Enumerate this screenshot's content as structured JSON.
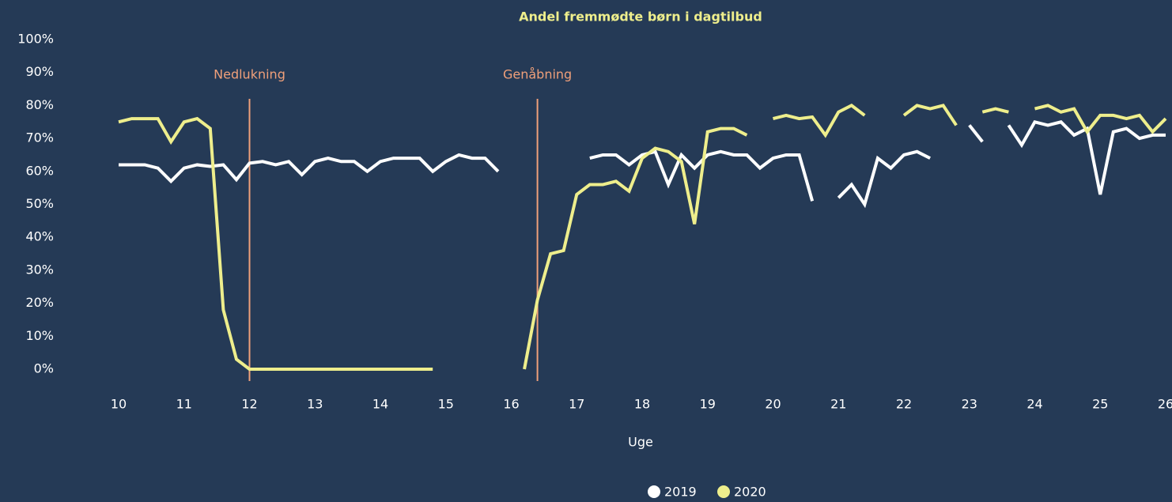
{
  "chart_data": {
    "type": "line",
    "title": "Andel fremmødte børn i dagtilbud",
    "x_label": "Uge",
    "x": [
      10,
      10.2,
      10.4,
      10.6,
      10.8,
      11,
      11.2,
      11.4,
      11.6,
      11.8,
      12,
      12.2,
      12.4,
      12.6,
      12.8,
      13,
      13.2,
      13.4,
      13.6,
      13.8,
      14,
      14.2,
      14.4,
      14.6,
      14.8,
      15,
      15.2,
      15.4,
      15.6,
      15.8,
      16,
      16.2,
      16.4,
      16.6,
      16.8,
      17,
      17.2,
      17.4,
      17.6,
      17.8,
      18,
      18.2,
      18.4,
      18.6,
      18.8,
      19,
      19.2,
      19.4,
      19.6,
      19.8,
      20,
      20.2,
      20.4,
      20.6,
      20.8,
      21,
      21.2,
      21.4,
      21.6,
      21.8,
      22,
      22.2,
      22.4,
      22.6,
      22.8,
      23,
      23.2,
      23.4,
      23.6,
      23.8,
      24,
      24.2,
      24.4,
      24.6,
      24.8,
      25,
      25.2,
      25.4,
      25.6,
      25.8,
      26
    ],
    "series": [
      {
        "name": "2019",
        "color": "#ffffff",
        "values": [
          62,
          62,
          62,
          61,
          57,
          61,
          62,
          61.5,
          62,
          57.5,
          62.5,
          63,
          62,
          63,
          59,
          63,
          64,
          63,
          63,
          60,
          63,
          64,
          64,
          64,
          60,
          63,
          65,
          64,
          64,
          60,
          null,
          null,
          null,
          null,
          null,
          null,
          64,
          65,
          65,
          62,
          65,
          66,
          56,
          65,
          61,
          65,
          66,
          65,
          65,
          61,
          64,
          65,
          65,
          51,
          null,
          52,
          56,
          50,
          64,
          61,
          65,
          66,
          64,
          null,
          null,
          74,
          69,
          null,
          74,
          68,
          75,
          74,
          75,
          71,
          73,
          53,
          72,
          73,
          70,
          71,
          71
        ]
      },
      {
        "name": "2020",
        "color": "#eeee8c",
        "values": [
          75,
          76,
          76,
          76,
          69,
          75,
          76,
          73,
          18,
          3,
          0,
          0,
          0,
          0,
          0,
          0,
          0,
          0,
          0,
          0,
          0,
          0,
          0,
          0,
          0,
          null,
          null,
          null,
          null,
          null,
          null,
          0,
          21,
          35,
          36,
          53,
          56,
          56,
          57,
          54,
          64,
          67,
          66,
          63,
          44,
          72,
          73,
          73,
          71,
          null,
          76,
          77,
          76,
          76.5,
          71,
          78,
          80,
          77,
          null,
          null,
          77,
          80,
          79,
          80,
          74,
          null,
          78,
          79,
          78,
          null,
          79,
          80,
          78,
          79,
          72,
          77,
          77,
          76,
          77,
          72,
          76
        ]
      }
    ],
    "xlim": [
      10,
      26
    ],
    "xticks": [
      10,
      11,
      12,
      13,
      14,
      15,
      16,
      17,
      18,
      19,
      20,
      21,
      22,
      23,
      24,
      25,
      26
    ],
    "ylim": [
      0,
      100
    ],
    "yticks": [
      {
        "value": 0,
        "label": "0%"
      },
      {
        "value": 10,
        "label": "10%"
      },
      {
        "value": 20,
        "label": "20%"
      },
      {
        "value": 30,
        "label": "30%"
      },
      {
        "value": 40,
        "label": "40%"
      },
      {
        "value": 50,
        "label": "50%"
      },
      {
        "value": 60,
        "label": "60%"
      },
      {
        "value": 70,
        "label": "70%"
      },
      {
        "value": 80,
        "label": "80%"
      },
      {
        "value": 90,
        "label": "90%"
      },
      {
        "value": 100,
        "label": "100%"
      }
    ],
    "annotations": [
      {
        "label": "Nedlukning",
        "x": 12,
        "color": "#f0a07a"
      },
      {
        "label": "Genåbning",
        "x": 16.4,
        "color": "#f0a07a"
      }
    ],
    "legend": "bottom"
  }
}
